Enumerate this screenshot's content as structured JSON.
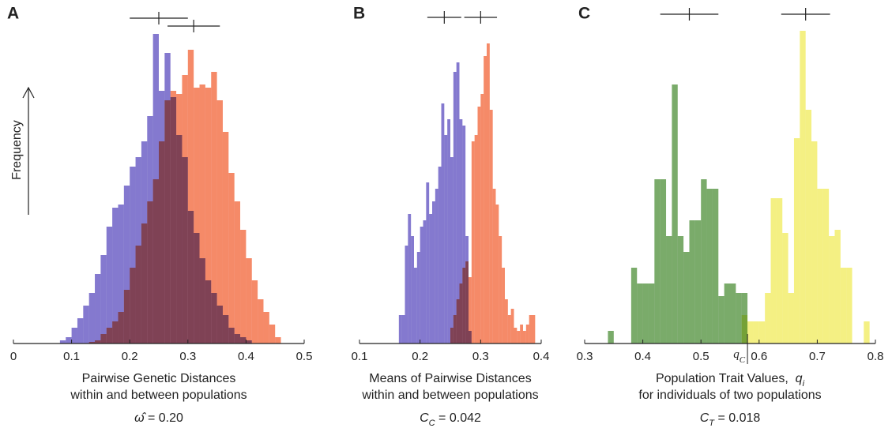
{
  "chart_data": [
    {
      "type": "histogram",
      "label": "A",
      "ylabel": "Frequency",
      "xlabel": [
        "Pairwise Genetic Distances",
        "within and between populations"
      ],
      "stat": {
        "symbol": "ω̂",
        "text": " = 0.20"
      },
      "xlim": [
        0,
        0.5
      ],
      "xticks": [
        0,
        0.1,
        0.2,
        0.3,
        0.4,
        0.5
      ],
      "ylim": [
        0,
        100
      ],
      "bins": [
        0.08,
        0.09,
        0.1,
        0.11,
        0.12,
        0.13,
        0.14,
        0.15,
        0.16,
        0.17,
        0.18,
        0.19,
        0.2,
        0.21,
        0.22,
        0.23,
        0.24,
        0.25,
        0.26,
        0.27,
        0.28,
        0.29,
        0.3,
        0.31,
        0.32,
        0.33,
        0.34,
        0.35,
        0.36,
        0.37,
        0.38,
        0.39,
        0.4,
        0.41,
        0.42,
        0.43,
        0.44,
        0.45,
        0.46
      ],
      "series": [
        {
          "color": "#8479cf",
          "errorbar": {
            "mean": 0.25,
            "error": 0.05
          },
          "values": [
            1,
            2,
            5,
            8,
            12,
            16,
            22,
            28,
            37,
            43,
            44,
            50,
            56,
            59,
            64,
            72,
            98,
            80,
            92,
            78,
            66,
            59,
            42,
            35,
            27,
            20,
            16,
            12,
            9,
            5,
            3,
            2,
            1,
            0,
            0,
            0,
            0,
            0
          ]
        },
        {
          "color": "#f58a68",
          "errorbar": {
            "mean": 0.31,
            "error": 0.045
          },
          "values": [
            0,
            0,
            0,
            0,
            0,
            0.5,
            1,
            3,
            5,
            7,
            10,
            17,
            24,
            31,
            38,
            45,
            52,
            64,
            77,
            80,
            79,
            85,
            93,
            81,
            82,
            81,
            86,
            77,
            67,
            54,
            45,
            36,
            27,
            20,
            14,
            10,
            6,
            2
          ]
        }
      ]
    },
    {
      "type": "histogram",
      "label": "B",
      "xlabel": [
        "Means of Pairwise Distances",
        "within and between populations"
      ],
      "stat": {
        "symbol": "C",
        "subscript": "C",
        "text": " = 0.042"
      },
      "xlim": [
        0.1,
        0.4
      ],
      "xticks": [
        0.1,
        0.2,
        0.3,
        0.4
      ],
      "ylim": [
        0,
        100
      ],
      "bins": [
        0.165,
        0.17,
        0.175,
        0.18,
        0.185,
        0.19,
        0.195,
        0.2,
        0.205,
        0.21,
        0.215,
        0.22,
        0.225,
        0.23,
        0.235,
        0.24,
        0.245,
        0.25,
        0.255,
        0.26,
        0.265,
        0.27,
        0.275,
        0.28,
        0.285,
        0.29,
        0.295,
        0.3,
        0.305,
        0.31,
        0.315,
        0.32,
        0.325,
        0.33,
        0.335,
        0.34,
        0.345,
        0.35,
        0.355,
        0.36,
        0.365,
        0.37,
        0.375,
        0.38,
        0.385,
        0.39
      ],
      "series": [
        {
          "color": "#8479cf",
          "errorbar": {
            "mean": 0.24,
            "error": 0.028
          },
          "values": [
            9,
            9,
            31,
            41,
            34,
            24,
            29,
            37,
            39,
            51,
            41,
            45,
            49,
            56,
            76,
            66,
            71,
            59,
            86,
            89,
            71,
            69,
            34,
            4,
            0,
            0,
            0,
            0,
            0,
            0,
            0,
            0,
            0,
            0,
            0,
            0,
            0,
            0,
            0,
            0,
            0,
            0,
            0,
            0,
            0
          ]
        },
        {
          "color": "#f58a68",
          "errorbar": {
            "mean": 0.3,
            "error": 0.027
          },
          "values": [
            0,
            0,
            0,
            0,
            0,
            0,
            0,
            0,
            0,
            0,
            0,
            0,
            0,
            0,
            0,
            0,
            0,
            5,
            9,
            14,
            19,
            24,
            26,
            21,
            64,
            66,
            75,
            79,
            91,
            95,
            74,
            49,
            44,
            34,
            24,
            14,
            9,
            11,
            5,
            4,
            6,
            4,
            6,
            9,
            9
          ]
        }
      ]
    },
    {
      "type": "histogram",
      "label": "C",
      "xlabel": [
        "Population Trait Values,",
        "for individuals of two populations"
      ],
      "xlabel_symbol": {
        "symbol": "q",
        "subscript": "i"
      },
      "stat": {
        "symbol": "C",
        "subscript": "T",
        "text": " = 0.018"
      },
      "marker": {
        "value": 0.58,
        "symbol": "q",
        "subscript": "C"
      },
      "xlim": [
        0.3,
        0.8
      ],
      "xticks": [
        0.3,
        0.4,
        0.5,
        0.6,
        0.7,
        0.8
      ],
      "ylim": [
        0,
        100
      ],
      "bins": [
        0.34,
        0.35,
        0.36,
        0.37,
        0.38,
        0.39,
        0.4,
        0.41,
        0.42,
        0.43,
        0.44,
        0.45,
        0.46,
        0.47,
        0.48,
        0.49,
        0.5,
        0.51,
        0.52,
        0.53,
        0.54,
        0.55,
        0.56,
        0.57,
        0.58,
        0.59,
        0.6,
        0.61,
        0.62,
        0.63,
        0.64,
        0.65,
        0.66,
        0.67,
        0.68,
        0.69,
        0.7,
        0.71,
        0.72,
        0.73,
        0.74,
        0.75,
        0.76,
        0.77,
        0.78,
        0.79
      ],
      "series": [
        {
          "color": "#7aab6a",
          "errorbar": {
            "mean": 0.48,
            "error": 0.05
          },
          "values": [
            4,
            0,
            0,
            0,
            24,
            19,
            19,
            19,
            52,
            52,
            34,
            82,
            34,
            29,
            39,
            39,
            52,
            49,
            49,
            15,
            19,
            19,
            16,
            16,
            0,
            0,
            0,
            0,
            0,
            0,
            0,
            0,
            0,
            0,
            0,
            0,
            0,
            0,
            0,
            0,
            0,
            0,
            0,
            0,
            0
          ]
        },
        {
          "color": "#f4f083",
          "errorbar": {
            "mean": 0.68,
            "error": 0.042
          },
          "values": [
            0,
            0,
            0,
            0,
            0,
            0,
            0,
            0,
            0,
            0,
            0,
            0,
            0,
            0,
            0,
            0,
            0,
            0,
            0,
            0,
            0,
            0,
            0,
            9,
            7,
            7,
            7,
            16,
            46,
            46,
            35,
            16,
            65,
            99,
            74,
            64,
            49,
            49,
            34,
            36,
            24,
            24,
            0,
            0,
            7
          ]
        }
      ]
    }
  ]
}
